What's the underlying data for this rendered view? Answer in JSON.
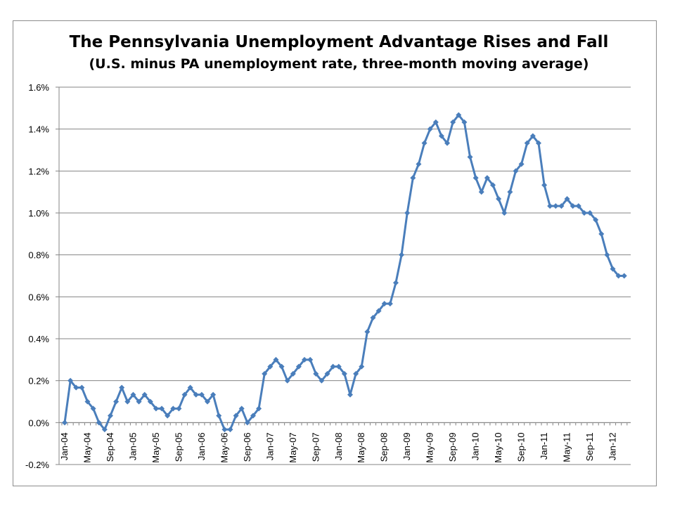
{
  "chart_data": {
    "type": "line",
    "title": "The Pennsylvania Unemployment Advantage Rises and Fall",
    "subtitle": "(U.S. minus PA unemployment rate, three-month moving average)",
    "xlabel": "",
    "ylabel": "",
    "ylim": [
      -0.2,
      1.6
    ],
    "y_ticks": [
      "-0.2%",
      "0.0%",
      "0.2%",
      "0.4%",
      "0.6%",
      "0.8%",
      "1.0%",
      "1.2%",
      "1.4%",
      "1.6%"
    ],
    "y_tick_values": [
      -0.2,
      0.0,
      0.2,
      0.4,
      0.6,
      0.8,
      1.0,
      1.2,
      1.4,
      1.6
    ],
    "x_tick_labels": [
      "Jan-04",
      "May-04",
      "Sep-04",
      "Jan-05",
      "May-05",
      "Sep-05",
      "Jan-06",
      "May-06",
      "Sep-06",
      "Jan-07",
      "May-07",
      "Sep-07",
      "Jan-08",
      "May-08",
      "Sep-08",
      "Jan-09",
      "May-09",
      "Sep-09",
      "Jan-10",
      "May-10",
      "Sep-10",
      "Jan-11",
      "May-11",
      "Sep-11",
      "Jan-12"
    ],
    "x_start": "Jan-04",
    "x_end": "Mar-12",
    "grid": true,
    "legend": "none",
    "series": [
      {
        "color": "#4a7ebb",
        "marker": "diamond",
        "values": [
          0.0,
          0.2,
          0.167,
          0.167,
          0.1,
          0.067,
          0.0,
          -0.033,
          0.033,
          0.1,
          0.167,
          0.1,
          0.133,
          0.1,
          0.133,
          0.1,
          0.067,
          0.067,
          0.033,
          0.067,
          0.067,
          0.133,
          0.167,
          0.133,
          0.133,
          0.1,
          0.133,
          0.033,
          -0.033,
          -0.033,
          0.033,
          0.067,
          0.0,
          0.033,
          0.067,
          0.233,
          0.267,
          0.3,
          0.267,
          0.2,
          0.233,
          0.267,
          0.3,
          0.3,
          0.233,
          0.2,
          0.233,
          0.267,
          0.267,
          0.233,
          0.133,
          0.233,
          0.267,
          0.433,
          0.5,
          0.533,
          0.567,
          0.567,
          0.667,
          0.8,
          1.0,
          1.167,
          1.233,
          1.333,
          1.4,
          1.433,
          1.367,
          1.333,
          1.433,
          1.467,
          1.433,
          1.267,
          1.167,
          1.1,
          1.167,
          1.133,
          1.067,
          1.0,
          1.1,
          1.2,
          1.233,
          1.333,
          1.367,
          1.333,
          1.133,
          1.033,
          1.033,
          1.033,
          1.067,
          1.033,
          1.033,
          1.0,
          1.0,
          0.967,
          0.9,
          0.8,
          0.733,
          0.7,
          0.7
        ]
      }
    ]
  }
}
